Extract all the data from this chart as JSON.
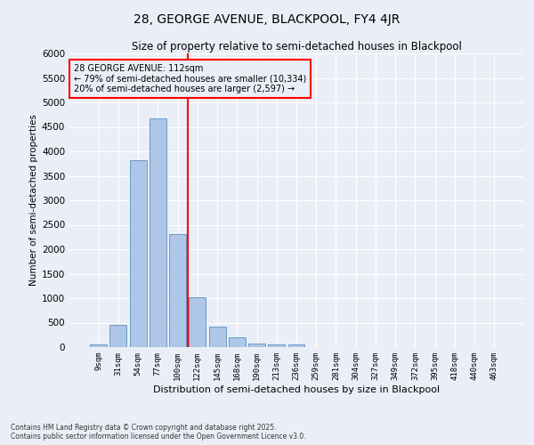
{
  "title": "28, GEORGE AVENUE, BLACKPOOL, FY4 4JR",
  "subtitle": "Size of property relative to semi-detached houses in Blackpool",
  "xlabel": "Distribution of semi-detached houses by size in Blackpool",
  "ylabel": "Number of semi-detached properties",
  "categories": [
    "9sqm",
    "31sqm",
    "54sqm",
    "77sqm",
    "100sqm",
    "122sqm",
    "145sqm",
    "168sqm",
    "190sqm",
    "213sqm",
    "236sqm",
    "259sqm",
    "281sqm",
    "304sqm",
    "327sqm",
    "349sqm",
    "372sqm",
    "395sqm",
    "418sqm",
    "440sqm",
    "463sqm"
  ],
  "bar_values": [
    50,
    460,
    3820,
    4680,
    2310,
    1010,
    420,
    200,
    70,
    55,
    50,
    0,
    0,
    0,
    0,
    0,
    0,
    0,
    0,
    0,
    0
  ],
  "bar_color": "#aec6e8",
  "bar_edge_color": "#5a8fc0",
  "vline_x": 4.5,
  "vline_color": "red",
  "vline_label_title": "28 GEORGE AVENUE: 112sqm",
  "vline_label_line1": "← 79% of semi-detached houses are smaller (10,334)",
  "vline_label_line2": "20% of semi-detached houses are larger (2,597) →",
  "ylim": [
    0,
    6000
  ],
  "yticks": [
    0,
    500,
    1000,
    1500,
    2000,
    2500,
    3000,
    3500,
    4000,
    4500,
    5000,
    5500,
    6000
  ],
  "bg_color": "#eaeff7",
  "grid_color": "white",
  "footnote1": "Contains HM Land Registry data © Crown copyright and database right 2025.",
  "footnote2": "Contains public sector information licensed under the Open Government Licence v3.0."
}
